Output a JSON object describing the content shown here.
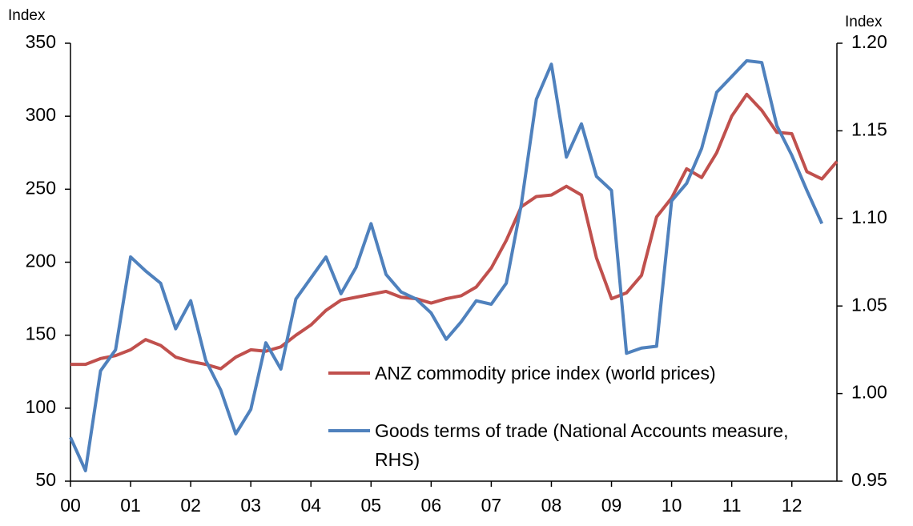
{
  "chart_data": {
    "type": "line",
    "y_label": "Index",
    "y2_label": "Index",
    "categories": [
      "00",
      null,
      null,
      null,
      "01",
      null,
      null,
      null,
      "02",
      null,
      null,
      null,
      "03",
      null,
      null,
      null,
      "04",
      null,
      null,
      null,
      "05",
      null,
      null,
      null,
      "06",
      null,
      null,
      null,
      "07",
      null,
      null,
      null,
      "08",
      null,
      null,
      null,
      "09",
      null,
      null,
      null,
      "10",
      null,
      null,
      null,
      "11",
      null,
      null,
      null,
      "12",
      null,
      null,
      null
    ],
    "series": [
      {
        "name": "ANZ commodity price index (world prices)",
        "color": "#c0504d",
        "axis": "y",
        "values": [
          130,
          130,
          134,
          136,
          140,
          147,
          143,
          135,
          132,
          130,
          127,
          135,
          140,
          139,
          142,
          150,
          157,
          167,
          174,
          176,
          178,
          180,
          176,
          175,
          172,
          175,
          177,
          183,
          196,
          215,
          238,
          245,
          246,
          252,
          246,
          203,
          175,
          179,
          191,
          231,
          244,
          264,
          258,
          275,
          300,
          315,
          304,
          289,
          288,
          262,
          257,
          269
        ]
      },
      {
        "name": "Goods terms of trade (National Accounts measure, RHS)",
        "color": "#4f81bd",
        "axis": "y2",
        "values": [
          0.975,
          0.956,
          1.013,
          1.025,
          1.078,
          1.07,
          1.063,
          1.037,
          1.053,
          1.019,
          1.002,
          0.977,
          0.991,
          1.029,
          1.014,
          1.054,
          1.066,
          1.078,
          1.057,
          1.072,
          1.097,
          1.068,
          1.058,
          1.054,
          1.046,
          1.031,
          1.041,
          1.053,
          1.051,
          1.063,
          1.108,
          1.168,
          1.188,
          1.135,
          1.154,
          1.124,
          1.116,
          1.023,
          1.026,
          1.027,
          1.11,
          1.12,
          1.14,
          1.172,
          1.181,
          1.19,
          1.189,
          1.153,
          1.136,
          1.116,
          1.097,
          null
        ]
      }
    ],
    "ylim": [
      50,
      350
    ],
    "yticks": [
      50,
      100,
      150,
      200,
      250,
      300,
      350
    ],
    "y2lim": [
      0.95,
      1.2
    ],
    "y2ticks": [
      0.95,
      {
        "value": 1.0,
        "label": "1.00"
      },
      1.05,
      {
        "value": 1.1,
        "label": "1.10"
      },
      1.15,
      {
        "value": 1.2,
        "label": "1.20"
      }
    ],
    "grid": false
  }
}
